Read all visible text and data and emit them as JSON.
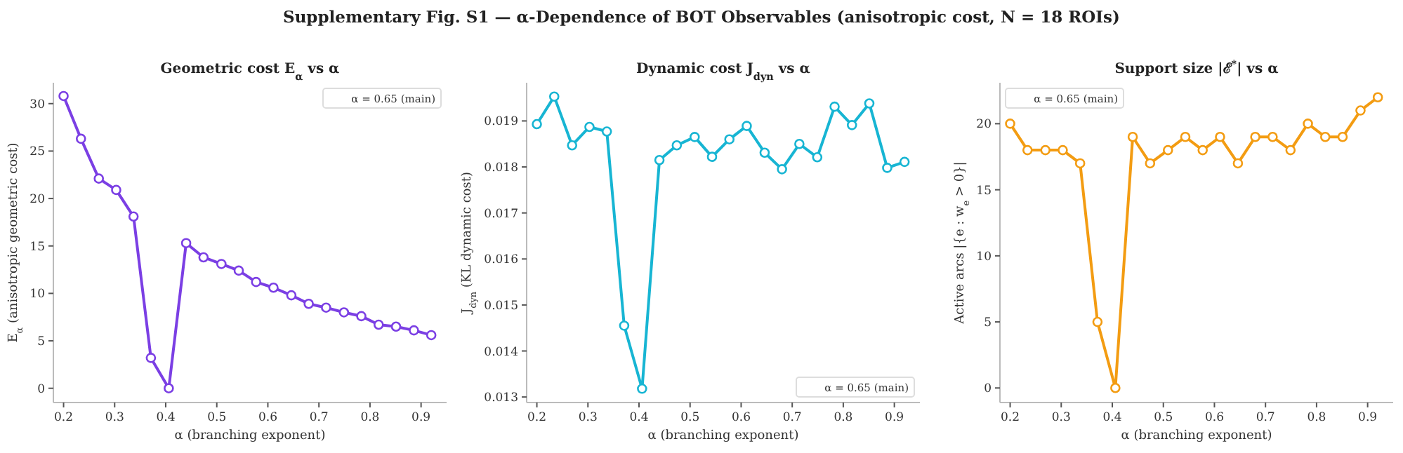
{
  "chart_data": [
    {
      "type": "line",
      "title": "Geometric cost E$_{α}$ vs α",
      "xlabel": "α  (branching exponent)",
      "ylabel": "E$_{α}$  (anisotropic geometric cost)",
      "annotations": [
        "Supplementary Fig. S1 — α-Dependence of BOT Observables (anisotropic cost, N = 18 ROIs)",
        "α = 0.65 (main)"
      ],
      "x": [
        0.2,
        0.234,
        0.269,
        0.303,
        0.337,
        0.371,
        0.406,
        0.44,
        0.474,
        0.509,
        0.543,
        0.577,
        0.611,
        0.646,
        0.68,
        0.714,
        0.749,
        0.783,
        0.817,
        0.851,
        0.886,
        0.92
      ],
      "series": [
        {
          "color": "#7b3fe4",
          "values": [
            30.8,
            26.3,
            22.1,
            20.9,
            18.1,
            3.2,
            0,
            15.3,
            13.8,
            13.1,
            12.4,
            11.2,
            10.6,
            9.8,
            8.9,
            8.5,
            8.0,
            7.6,
            6.7,
            6.5,
            6.1,
            5.6
          ]
        }
      ],
      "xlim": [
        0.18,
        0.95
      ],
      "ylim": [
        -1.5,
        32.2
      ],
      "xticks": [
        0.2,
        0.3,
        0.4,
        0.5,
        0.6,
        0.7,
        0.8,
        0.9
      ],
      "yticks": [
        0,
        5,
        10,
        15,
        20,
        25,
        30
      ],
      "grid": false,
      "marker": "circle",
      "line_style": "solid"
    },
    {
      "type": "line",
      "title": "Dynamic cost J$_{dyn}$ vs α",
      "xlabel": "α  (branching exponent)",
      "ylabel": "J$_{dyn}$  (KL dynamic cost)",
      "annotations": [
        "α = 0.65 (main)"
      ],
      "x": [
        0.2,
        0.234,
        0.269,
        0.303,
        0.337,
        0.371,
        0.406,
        0.44,
        0.474,
        0.509,
        0.543,
        0.577,
        0.611,
        0.646,
        0.68,
        0.714,
        0.749,
        0.783,
        0.817,
        0.851,
        0.886,
        0.92
      ],
      "series": [
        {
          "color": "#17b5d3",
          "values": [
            0.01893,
            0.01953,
            0.01847,
            0.01887,
            0.01877,
            0.01455,
            0.01318,
            0.01815,
            0.01847,
            0.01865,
            0.01822,
            0.0186,
            0.01889,
            0.01831,
            0.01795,
            0.0185,
            0.01821,
            0.01931,
            0.01891,
            0.01938,
            0.01798,
            0.01811
          ]
        }
      ],
      "xlim": [
        0.18,
        0.95
      ],
      "ylim": [
        0.01288,
        0.01983
      ],
      "xticks": [
        0.2,
        0.3,
        0.4,
        0.5,
        0.6,
        0.7,
        0.8,
        0.9
      ],
      "yticks": [
        0.013,
        0.014,
        0.015,
        0.016,
        0.017,
        0.018,
        0.019
      ],
      "grid": false,
      "marker": "circle",
      "line_style": "solid"
    },
    {
      "type": "line",
      "title": "Support size |ℰ$^{*}$| vs α",
      "xlabel": "α  (branching exponent)",
      "ylabel": "Active arcs  |{e : w$_{e}$ > 0}|",
      "annotations": [
        "α = 0.65 (main)"
      ],
      "x": [
        0.2,
        0.234,
        0.269,
        0.303,
        0.337,
        0.371,
        0.406,
        0.44,
        0.474,
        0.509,
        0.543,
        0.577,
        0.611,
        0.646,
        0.68,
        0.714,
        0.749,
        0.783,
        0.817,
        0.851,
        0.886,
        0.92
      ],
      "series": [
        {
          "color": "#f39c12",
          "values": [
            20,
            18,
            18,
            18,
            17,
            5,
            0,
            19,
            17,
            18,
            19,
            18,
            19,
            17,
            19,
            19,
            18,
            20,
            19,
            19,
            21,
            22
          ]
        }
      ],
      "xlim": [
        0.18,
        0.95
      ],
      "ylim": [
        -1.1,
        23.1
      ],
      "xticks": [
        0.2,
        0.3,
        0.4,
        0.5,
        0.6,
        0.7,
        0.8,
        0.9
      ],
      "yticks": [
        0,
        5,
        10,
        15,
        20
      ],
      "grid": false,
      "marker": "circle",
      "line_style": "solid"
    }
  ]
}
